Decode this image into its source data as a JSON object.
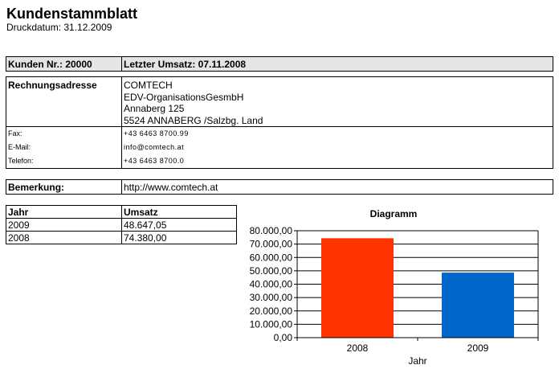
{
  "header": {
    "title": "Kundenstammblatt",
    "print_date": "Druckdatum: 31.12.2009"
  },
  "customer": {
    "number_label": "Kunden Nr.: 20000",
    "last_sale_label": "Letzter Umsatz: 07.11.2008"
  },
  "address": {
    "label": "Rechnungsadresse",
    "lines": [
      "COMTECH",
      "EDV-OrganisationsGesmbH",
      "Annaberg 125",
      "5524 ANNABERG /Salzbg. Land"
    ]
  },
  "contact": [
    {
      "label": "Fax:",
      "value": "+43 6463 8700.99"
    },
    {
      "label": "E-Mail:",
      "value": "info@comtech.at"
    },
    {
      "label": "Telefon:",
      "value": "+43 6463 8700.0"
    }
  ],
  "remark": {
    "label": "Bemerkung:",
    "value": "http://www.comtech.at"
  },
  "sales_table": {
    "headers": [
      "Jahr",
      "Umsatz"
    ],
    "rows": [
      [
        "2009",
        "48.647,05"
      ],
      [
        "2008",
        "74.380,00"
      ]
    ]
  },
  "chart_data": {
    "type": "bar",
    "title": "Diagramm",
    "categories": [
      "2008",
      "2009"
    ],
    "values": [
      74380.0,
      48647.05
    ],
    "colors": [
      "#ff3300",
      "#0066cc"
    ],
    "xlabel": "Jahr",
    "ylabel": "",
    "ylim": [
      0,
      80000
    ],
    "yticks": [
      0,
      10000,
      20000,
      30000,
      40000,
      50000,
      60000,
      70000,
      80000
    ],
    "ytick_labels": [
      "0,00",
      "10.000,00",
      "20.000,00",
      "30.000,00",
      "40.000,00",
      "50.000,00",
      "60.000,00",
      "70.000,00",
      "80.000,00"
    ],
    "grid": true,
    "legend": "none"
  }
}
